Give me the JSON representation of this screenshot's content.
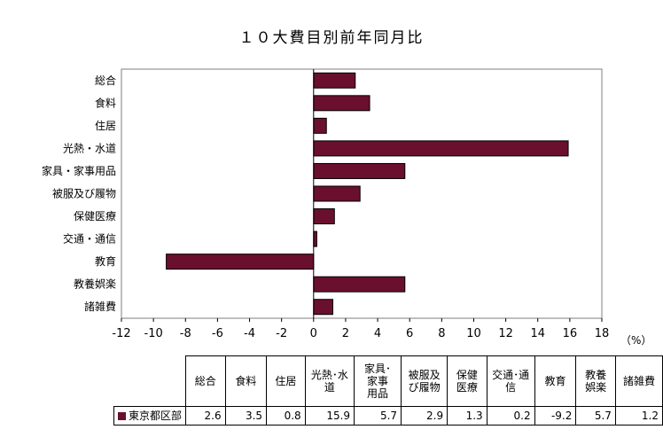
{
  "chart_data": {
    "type": "bar",
    "orientation": "horizontal",
    "title": "１０大費目別前年同月比",
    "unit_label": "（%）",
    "categories": [
      "総合",
      "食料",
      "住居",
      "光熱・水道",
      "家具・家事用品",
      "被服及び履物",
      "保健医療",
      "交通・通信",
      "教育",
      "教養娯楽",
      "諸雑費"
    ],
    "series": [
      {
        "name": "東京都区部",
        "values": [
          2.6,
          3.5,
          0.8,
          15.9,
          5.7,
          2.9,
          1.3,
          0.2,
          -9.2,
          5.7,
          1.2
        ],
        "color": "#6b0f2e"
      }
    ],
    "xlim": [
      -12,
      18
    ],
    "x_ticks": [
      "-12",
      "-10",
      "-8",
      "-6",
      "-4",
      "-2",
      "0",
      "2",
      "4",
      "6",
      "8",
      "10",
      "12",
      "14",
      "16",
      "18"
    ],
    "grid": false
  },
  "table": {
    "headers": [
      [
        "総合"
      ],
      [
        "食料"
      ],
      [
        "住居"
      ],
      [
        "光熱･水",
        "道"
      ],
      [
        "家具･",
        "家事",
        "用品"
      ],
      [
        "被服及",
        "び履物"
      ],
      [
        "保健",
        "医療"
      ],
      [
        "交通･通",
        "信"
      ],
      [
        "教育"
      ],
      [
        "教養",
        "娯楽"
      ],
      [
        "諸雑費"
      ]
    ],
    "row_label": "東京都区部",
    "values": [
      "2.6",
      "3.5",
      "0.8",
      "15.9",
      "5.7",
      "2.9",
      "1.3",
      "0.2",
      "-9.2",
      "5.7",
      "1.2"
    ]
  }
}
